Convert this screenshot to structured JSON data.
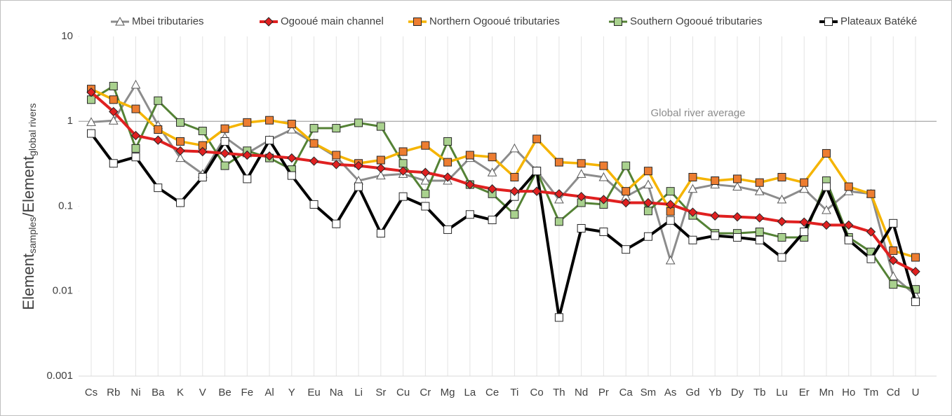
{
  "chart_data": {
    "type": "line",
    "ylabel_parts": [
      {
        "text": "Element",
        "sub": false
      },
      {
        "text": "samples",
        "sub": true
      },
      {
        "text": "/Element",
        "sub": false
      },
      {
        "text": "global rivers",
        "sub": true
      }
    ],
    "log_scale": true,
    "ylim": [
      0.001,
      10
    ],
    "yticks": [
      0.001,
      0.01,
      0.1,
      1,
      10
    ],
    "vertical_grid": true,
    "reference_line": {
      "value": 1,
      "label": "Global river average",
      "color": "#a6a6a6"
    },
    "categories": [
      "Cs",
      "Rb",
      "Ni",
      "Ba",
      "K",
      "V",
      "Be",
      "Fe",
      "Al",
      "Y",
      "Eu",
      "Na",
      "Li",
      "Sr",
      "Cu",
      "Cr",
      "Mg",
      "La",
      "Ce",
      "Ti",
      "Co",
      "Th",
      "Nd",
      "Pr",
      "Ca",
      "Sm",
      "As",
      "Gd",
      "Yb",
      "Dy",
      "Tb",
      "Lu",
      "Er",
      "Mn",
      "Ho",
      "Tm",
      "Cd",
      "U"
    ],
    "series": [
      {
        "name": "Mbei tributaries",
        "color": "#8c8c8c",
        "marker": "triangle",
        "marker_color": "#ffffff",
        "values": [
          0.98,
          1.02,
          2.7,
          0.9,
          0.37,
          0.24,
          0.65,
          0.42,
          0.6,
          0.8,
          0.55,
          0.38,
          0.2,
          0.23,
          0.24,
          0.2,
          0.2,
          0.37,
          0.25,
          0.48,
          0.26,
          0.12,
          0.24,
          0.22,
          0.13,
          0.18,
          0.023,
          0.16,
          0.18,
          0.17,
          0.15,
          0.12,
          0.16,
          0.09,
          0.15,
          0.14,
          0.015,
          0.009
        ]
      },
      {
        "name": "Ogooué main channel",
        "color": "#e02020",
        "marker": "diamond",
        "marker_color": "#e02020",
        "values": [
          2.2,
          1.3,
          0.68,
          0.6,
          0.45,
          0.44,
          0.42,
          0.4,
          0.39,
          0.37,
          0.34,
          0.31,
          0.3,
          0.28,
          0.26,
          0.25,
          0.22,
          0.18,
          0.16,
          0.15,
          0.15,
          0.14,
          0.13,
          0.12,
          0.11,
          0.11,
          0.105,
          0.085,
          0.077,
          0.075,
          0.073,
          0.066,
          0.065,
          0.06,
          0.06,
          0.05,
          0.023,
          0.017
        ]
      },
      {
        "name": "Northern Ogooué tributaries",
        "color": "#f5b400",
        "marker": "square",
        "marker_color": "#ed7d31",
        "values": [
          2.4,
          1.8,
          1.4,
          0.8,
          0.58,
          0.52,
          0.82,
          0.97,
          1.03,
          0.93,
          0.55,
          0.4,
          0.32,
          0.35,
          0.44,
          0.52,
          0.33,
          0.4,
          0.38,
          0.22,
          0.62,
          0.33,
          0.32,
          0.3,
          0.15,
          0.26,
          0.087,
          0.22,
          0.2,
          0.21,
          0.19,
          0.22,
          0.19,
          0.42,
          0.17,
          0.14,
          0.03,
          0.025
        ]
      },
      {
        "name": "Southern Ogooué tributaries",
        "color": "#548235",
        "marker": "square",
        "marker_color": "#a9d18e",
        "values": [
          1.8,
          2.6,
          0.48,
          1.75,
          0.97,
          0.77,
          0.3,
          0.45,
          0.37,
          0.27,
          0.83,
          0.83,
          0.96,
          0.87,
          0.32,
          0.14,
          0.58,
          0.18,
          0.14,
          0.08,
          0.26,
          0.066,
          0.11,
          0.105,
          0.3,
          0.088,
          0.15,
          0.078,
          0.048,
          0.048,
          0.05,
          0.043,
          0.043,
          0.2,
          0.043,
          0.029,
          0.012,
          0.0105
        ]
      },
      {
        "name": "Plateaux Batéké",
        "color": "#000000",
        "marker": "square",
        "marker_color": "#ffffff",
        "values": [
          0.72,
          0.32,
          0.38,
          0.165,
          0.11,
          0.22,
          0.58,
          0.21,
          0.6,
          0.23,
          0.105,
          0.062,
          0.17,
          0.048,
          0.13,
          0.1,
          0.053,
          0.08,
          0.069,
          0.13,
          0.26,
          0.0049,
          0.055,
          0.05,
          0.031,
          0.044,
          0.068,
          0.04,
          0.045,
          0.043,
          0.04,
          0.025,
          0.05,
          0.17,
          0.04,
          0.024,
          0.063,
          0.0075
        ]
      }
    ]
  }
}
